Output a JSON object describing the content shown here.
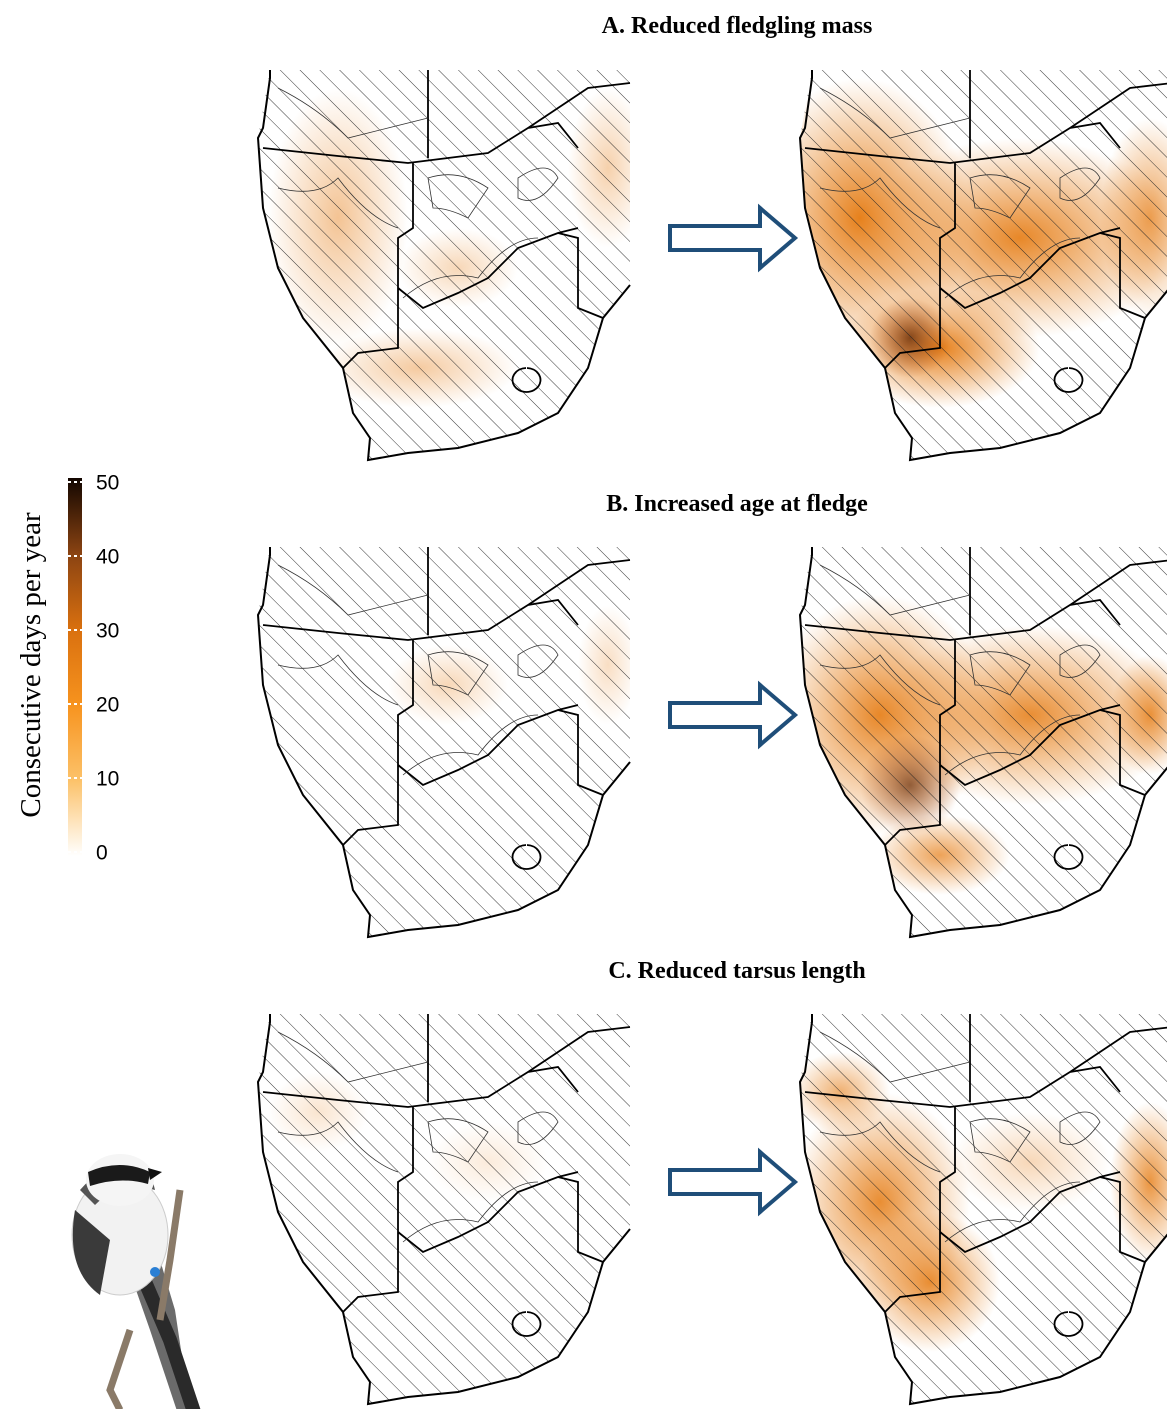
{
  "panels": [
    {
      "title": "A. Reduced fledgling mass"
    },
    {
      "title": "B. Increased age at fledge"
    },
    {
      "title": "C. Reduced tarsus length"
    }
  ],
  "legend": {
    "title": "Consecutive days per year",
    "ticks": [
      0,
      10,
      20,
      30,
      40,
      50
    ]
  }
}
